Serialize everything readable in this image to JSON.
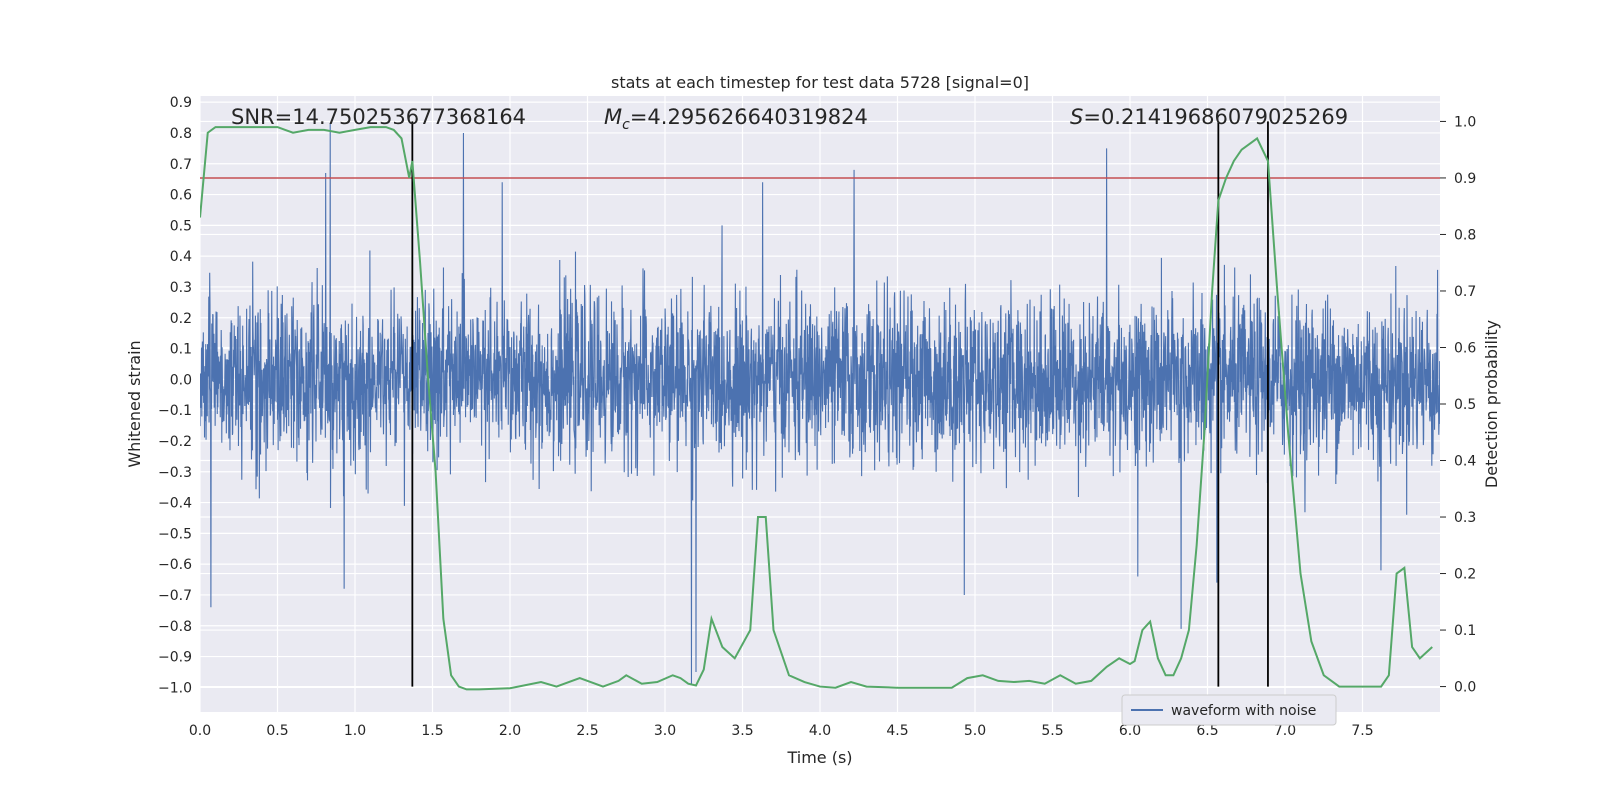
{
  "chart_data": {
    "type": "line",
    "title": "stats at each timestep for test data 5728 [signal=0]",
    "xlabel": "Time (s)",
    "ylabel": "Whitened strain",
    "y2label": "Detection probability",
    "xlim": [
      0.0,
      8.0
    ],
    "ylim": [
      -1.08,
      0.92
    ],
    "y2lim": [
      -0.045,
      1.045
    ],
    "xticks": [
      "0.0",
      "0.5",
      "1.0",
      "1.5",
      "2.0",
      "2.5",
      "3.0",
      "3.5",
      "4.0",
      "4.5",
      "5.0",
      "5.5",
      "6.0",
      "6.5",
      "7.0",
      "7.5"
    ],
    "yticks": [
      "0.9",
      "0.8",
      "0.7",
      "0.6",
      "0.5",
      "0.4",
      "0.3",
      "0.2",
      "0.1",
      "0.0",
      "−0.1",
      "−0.2",
      "−0.3",
      "−0.4",
      "−0.5",
      "−0.6",
      "−0.7",
      "−0.8",
      "−0.9",
      "−1.0"
    ],
    "y2ticks": [
      "1.0",
      "0.9",
      "0.8",
      "0.7",
      "0.6",
      "0.5",
      "0.4",
      "0.3",
      "0.2",
      "0.1",
      "0.0"
    ],
    "grid": true,
    "legend": {
      "position": "bottom-right",
      "entries": [
        "waveform with noise"
      ]
    },
    "annotations": {
      "snr": "SNR=14.750253677368164",
      "mc_symbol": "M",
      "mc_sub": "c",
      "mc_value": "=4.295626640319824",
      "s_symbol": "S",
      "s_value": "=0.21419686079025269"
    },
    "threshold": 0.9,
    "vlines": [
      1.37,
      6.57,
      6.89
    ],
    "colors": {
      "waveform": "#4c72b0",
      "probability": "#55a868",
      "threshold": "#c44e52",
      "vlines": "#000000",
      "background": "#eaeaf2"
    },
    "waveform_spikes": [
      {
        "x": 0.07,
        "y": -0.74
      },
      {
        "x": 0.84,
        "y": 0.83
      },
      {
        "x": 0.81,
        "y": 0.67
      },
      {
        "x": 0.93,
        "y": -0.68
      },
      {
        "x": 1.7,
        "y": 0.8
      },
      {
        "x": 1.95,
        "y": 0.64
      },
      {
        "x": 3.17,
        "y": -0.99
      },
      {
        "x": 3.63,
        "y": 0.64
      },
      {
        "x": 4.22,
        "y": 0.68
      },
      {
        "x": 4.93,
        "y": -0.7
      },
      {
        "x": 5.85,
        "y": 0.75
      },
      {
        "x": 6.05,
        "y": -0.64
      },
      {
        "x": 6.33,
        "y": -0.81
      },
      {
        "x": 6.56,
        "y": -0.66
      },
      {
        "x": 7.62,
        "y": -0.62
      },
      {
        "x": 3.2,
        "y": -0.95
      }
    ],
    "probability": {
      "x": [
        0.0,
        0.05,
        0.1,
        0.2,
        0.3,
        0.4,
        0.5,
        0.55,
        0.6,
        0.7,
        0.8,
        0.9,
        1.0,
        1.1,
        1.2,
        1.25,
        1.3,
        1.35,
        1.37,
        1.42,
        1.47,
        1.52,
        1.57,
        1.62,
        1.67,
        1.72,
        1.8,
        2.0,
        2.2,
        2.3,
        2.45,
        2.6,
        2.7,
        2.75,
        2.85,
        2.95,
        3.05,
        3.1,
        3.15,
        3.2,
        3.25,
        3.3,
        3.37,
        3.45,
        3.55,
        3.6,
        3.65,
        3.7,
        3.8,
        3.9,
        4.0,
        4.1,
        4.2,
        4.3,
        4.5,
        4.7,
        4.85,
        4.95,
        5.05,
        5.15,
        5.25,
        5.35,
        5.45,
        5.55,
        5.65,
        5.75,
        5.85,
        5.93,
        6.0,
        6.03,
        6.08,
        6.13,
        6.18,
        6.23,
        6.28,
        6.33,
        6.38,
        6.43,
        6.48,
        6.53,
        6.57,
        6.62,
        6.67,
        6.72,
        6.77,
        6.82,
        6.89,
        6.95,
        7.02,
        7.1,
        7.17,
        7.25,
        7.35,
        7.45,
        7.55,
        7.62,
        7.67,
        7.72,
        7.77,
        7.82,
        7.87,
        7.95
      ],
      "y": [
        0.83,
        0.98,
        0.99,
        0.99,
        0.99,
        0.99,
        0.99,
        0.985,
        0.98,
        0.985,
        0.985,
        0.98,
        0.985,
        0.99,
        0.99,
        0.985,
        0.97,
        0.9,
        0.93,
        0.75,
        0.55,
        0.38,
        0.12,
        0.02,
        0.0,
        -0.005,
        -0.005,
        -0.003,
        0.008,
        0.0,
        0.015,
        0.0,
        0.01,
        0.02,
        0.005,
        0.008,
        0.02,
        0.015,
        0.005,
        0.002,
        0.03,
        0.12,
        0.07,
        0.05,
        0.1,
        0.3,
        0.3,
        0.1,
        0.02,
        0.008,
        0.0,
        -0.002,
        0.008,
        0.0,
        -0.002,
        -0.002,
        -0.002,
        0.015,
        0.02,
        0.01,
        0.008,
        0.01,
        0.005,
        0.02,
        0.005,
        0.01,
        0.035,
        0.05,
        0.04,
        0.045,
        0.1,
        0.115,
        0.05,
        0.02,
        0.02,
        0.05,
        0.1,
        0.25,
        0.45,
        0.7,
        0.86,
        0.9,
        0.93,
        0.95,
        0.96,
        0.97,
        0.93,
        0.7,
        0.45,
        0.2,
        0.08,
        0.02,
        0.0,
        0.0,
        0.0,
        0.0,
        0.02,
        0.2,
        0.21,
        0.07,
        0.05,
        0.07
      ]
    }
  }
}
